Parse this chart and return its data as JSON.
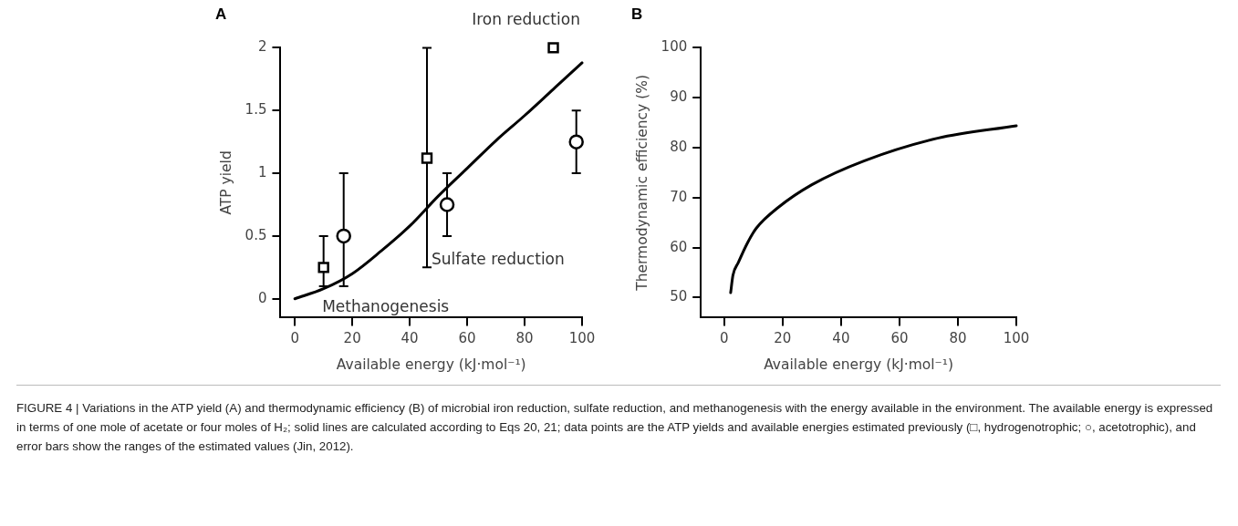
{
  "chart_data": [
    {
      "type": "scatter",
      "title": "A",
      "xlabel": "Available energy (kJ·mol⁻¹)",
      "ylabel": "ATP yield",
      "xlim": [
        -5,
        100
      ],
      "ylim": [
        -0.15,
        2
      ],
      "xticks": [
        0,
        20,
        40,
        60,
        80,
        100
      ],
      "yticks": [
        0,
        0.5,
        1,
        1.5,
        2
      ],
      "series": [
        {
          "type": "line",
          "color": "#000000",
          "marker": "none",
          "x": [
            0,
            10,
            20,
            30,
            40,
            50,
            60,
            70,
            80,
            90,
            100
          ],
          "values": [
            0,
            0.08,
            0.2,
            0.38,
            0.58,
            0.82,
            1.04,
            1.26,
            1.46,
            1.67,
            1.88
          ]
        },
        {
          "type": "scatter",
          "color": "#000000",
          "marker": "square",
          "x": [
            10,
            46,
            90
          ],
          "values": [
            0.25,
            1.12,
            2
          ],
          "errors": [
            [
              0.1,
              0.5
            ],
            [
              0.25,
              2
            ],
            null
          ]
        },
        {
          "type": "scatter",
          "color": "#000000",
          "marker": "circle",
          "x": [
            17,
            53,
            98
          ],
          "values": [
            0.5,
            0.75,
            1.25
          ],
          "errors": [
            [
              0.1,
              1
            ],
            [
              0.5,
              1
            ],
            [
              1,
              1.5
            ]
          ]
        }
      ],
      "annotations": [
        {
          "text": "Iron reduction",
          "x": 90,
          "y": 2
        },
        {
          "text": "Sulfate reduction",
          "x": 46,
          "y": 0.25
        },
        {
          "text": "Methanogenesis",
          "x": 10,
          "y": 0.25
        },
        "FIGURE 4 | Variations in the ATP yield (A) and thermodynamic efficiency (B) of microbial iron reduction, sulfate reduction, and methanogenesis with the energy available in the environment. The available energy is expressed in terms of one mole of acetate or four moles of H₂; solid lines are calculated according to Eqs 20, 21; data points are the ATP yields and available energies estimated previously (□, hydrogenotrophic; ○, acetotrophic), and error bars show the ranges of the estimated values (Jin, 2012)."
      ]
    },
    {
      "type": "line",
      "title": "B",
      "xlabel": "Available energy (kJ·mol⁻¹)",
      "ylabel": "Thermodynamic efficiency (%)",
      "xlim": [
        -8,
        100
      ],
      "ylim": [
        46,
        100
      ],
      "xticks": [
        0,
        20,
        40,
        60,
        80,
        100
      ],
      "yticks": [
        50,
        60,
        70,
        80,
        90,
        100
      ],
      "marker": "none",
      "series": [
        {
          "color": "#000000",
          "x": [
            2.2,
            3,
            4.8,
            8,
            11,
            18.6,
            30,
            48,
            73,
            100
          ],
          "values": [
            51,
            54.5,
            57,
            61,
            63.9,
            68.1,
            72.6,
            77.4,
            81.9,
            84.4
          ]
        }
      ]
    }
  ]
}
